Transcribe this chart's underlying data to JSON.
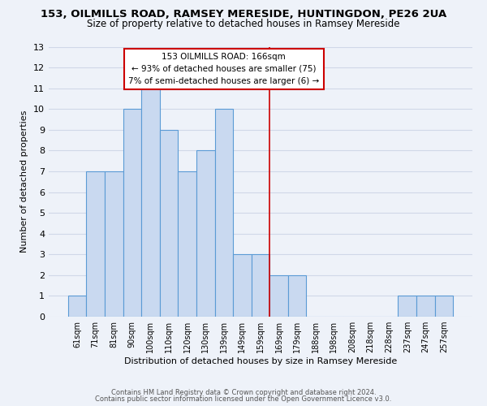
{
  "title_line1": "153, OILMILLS ROAD, RAMSEY MERESIDE, HUNTINGDON, PE26 2UA",
  "title_line2": "Size of property relative to detached houses in Ramsey Mereside",
  "xlabel": "Distribution of detached houses by size in Ramsey Mereside",
  "ylabel": "Number of detached properties",
  "bar_labels": [
    "61sqm",
    "71sqm",
    "81sqm",
    "90sqm",
    "100sqm",
    "110sqm",
    "120sqm",
    "130sqm",
    "139sqm",
    "149sqm",
    "159sqm",
    "169sqm",
    "179sqm",
    "188sqm",
    "198sqm",
    "208sqm",
    "218sqm",
    "228sqm",
    "237sqm",
    "247sqm",
    "257sqm"
  ],
  "bar_heights": [
    1,
    7,
    7,
    10,
    11,
    9,
    7,
    8,
    10,
    3,
    3,
    2,
    2,
    0,
    0,
    0,
    0,
    0,
    1,
    1,
    1
  ],
  "bar_color": "#c9d9f0",
  "bar_edgecolor": "#5b9bd5",
  "ylim": [
    0,
    13
  ],
  "yticks": [
    0,
    1,
    2,
    3,
    4,
    5,
    6,
    7,
    8,
    9,
    10,
    11,
    12,
    13
  ],
  "vline_index": 11,
  "vline_color": "#cc0000",
  "annotation_title": "153 OILMILLS ROAD: 166sqm",
  "annotation_line2": "← 93% of detached houses are smaller (75)",
  "annotation_line3": "7% of semi-detached houses are larger (6) →",
  "annotation_box_color": "#cc0000",
  "background_color": "#eef2f9",
  "grid_color": "#d0d8e8",
  "footer_line1": "Contains HM Land Registry data © Crown copyright and database right 2024.",
  "footer_line2": "Contains public sector information licensed under the Open Government Licence v3.0."
}
